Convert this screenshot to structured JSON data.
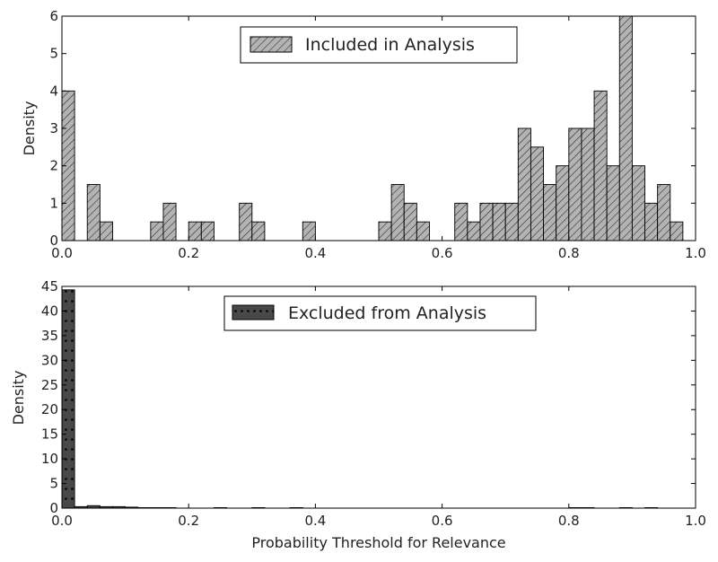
{
  "chart_data": [
    {
      "type": "bar",
      "title": "",
      "xlabel": "",
      "ylabel": "Density",
      "xlim": [
        0.0,
        1.0
      ],
      "ylim": [
        0,
        6
      ],
      "bin_width": 0.02,
      "xticks": [
        "0.0",
        "0.2",
        "0.4",
        "0.6",
        "0.8",
        "1.0"
      ],
      "yticks": [
        "0",
        "1",
        "2",
        "3",
        "4",
        "5",
        "6"
      ],
      "legend": "Included in Analysis",
      "legend_position": "top-center",
      "fill_color": "#b3b3b3",
      "pattern": "diagonal-hatch",
      "bins": [
        {
          "x": 0.0,
          "value": 4
        },
        {
          "x": 0.04,
          "value": 1.5
        },
        {
          "x": 0.06,
          "value": 0.5
        },
        {
          "x": 0.14,
          "value": 0.5
        },
        {
          "x": 0.16,
          "value": 1
        },
        {
          "x": 0.2,
          "value": 0.5
        },
        {
          "x": 0.22,
          "value": 0.5
        },
        {
          "x": 0.28,
          "value": 1
        },
        {
          "x": 0.3,
          "value": 0.5
        },
        {
          "x": 0.38,
          "value": 0.5
        },
        {
          "x": 0.5,
          "value": 0.5
        },
        {
          "x": 0.52,
          "value": 1.5
        },
        {
          "x": 0.54,
          "value": 1
        },
        {
          "x": 0.56,
          "value": 0.5
        },
        {
          "x": 0.62,
          "value": 1
        },
        {
          "x": 0.64,
          "value": 0.5
        },
        {
          "x": 0.66,
          "value": 1
        },
        {
          "x": 0.68,
          "value": 1
        },
        {
          "x": 0.7,
          "value": 1
        },
        {
          "x": 0.72,
          "value": 3
        },
        {
          "x": 0.74,
          "value": 2.5
        },
        {
          "x": 0.76,
          "value": 1.5
        },
        {
          "x": 0.78,
          "value": 2
        },
        {
          "x": 0.8,
          "value": 3
        },
        {
          "x": 0.82,
          "value": 3
        },
        {
          "x": 0.84,
          "value": 4
        },
        {
          "x": 0.86,
          "value": 2
        },
        {
          "x": 0.88,
          "value": 6
        },
        {
          "x": 0.9,
          "value": 2
        },
        {
          "x": 0.92,
          "value": 1
        },
        {
          "x": 0.94,
          "value": 1.5
        },
        {
          "x": 0.96,
          "value": 0.5
        }
      ]
    },
    {
      "type": "bar",
      "title": "",
      "xlabel": "Probability Threshold for Relevance",
      "ylabel": "Density",
      "xlim": [
        0.0,
        1.0
      ],
      "ylim": [
        0,
        45
      ],
      "bin_width": 0.02,
      "xticks": [
        "0.0",
        "0.2",
        "0.4",
        "0.6",
        "0.8",
        "1.0"
      ],
      "yticks": [
        "0",
        "5",
        "10",
        "15",
        "20",
        "25",
        "30",
        "35",
        "40",
        "45"
      ],
      "legend": "Excluded from Analysis",
      "legend_position": "top-center",
      "fill_color": "#4a4a4a",
      "pattern": "dots",
      "bins": [
        {
          "x": 0.0,
          "value": 44.3
        },
        {
          "x": 0.02,
          "value": 0.3
        },
        {
          "x": 0.04,
          "value": 0.5
        },
        {
          "x": 0.06,
          "value": 0.3
        },
        {
          "x": 0.08,
          "value": 0.3
        },
        {
          "x": 0.1,
          "value": 0.2
        },
        {
          "x": 0.12,
          "value": 0.1
        },
        {
          "x": 0.14,
          "value": 0.1
        },
        {
          "x": 0.16,
          "value": 0.1
        },
        {
          "x": 0.24,
          "value": 0.1
        },
        {
          "x": 0.3,
          "value": 0.1
        },
        {
          "x": 0.36,
          "value": 0.1
        },
        {
          "x": 0.8,
          "value": 0.1
        },
        {
          "x": 0.82,
          "value": 0.1
        },
        {
          "x": 0.88,
          "value": 0.1
        },
        {
          "x": 0.92,
          "value": 0.1
        }
      ]
    }
  ]
}
